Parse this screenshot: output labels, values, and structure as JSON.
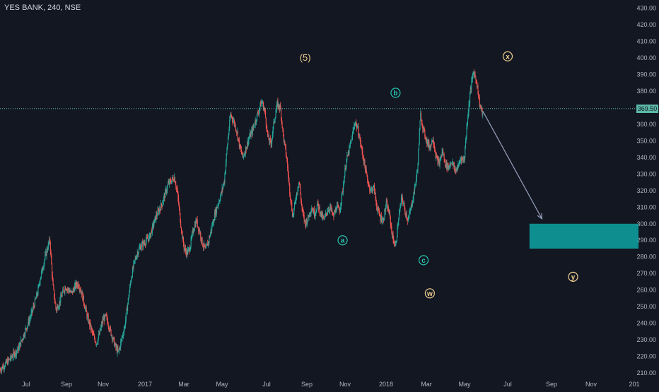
{
  "header": {
    "symbol_line": "YES BANK, 240, NSE"
  },
  "colors": {
    "background": "#131722",
    "up": "#26a69a",
    "down": "#ef5350",
    "axis_text": "#b2b5be",
    "target_box": "#0fa3a3",
    "hline": "#5cb8a8",
    "projection": "#8f9bb3"
  },
  "chart_data": {
    "type": "candlestick",
    "ylim": [
      207,
      435
    ],
    "y_ticks": [
      "210.00",
      "220.00",
      "230.00",
      "240.00",
      "250.00",
      "260.00",
      "270.00",
      "280.00",
      "290.00",
      "300.00",
      "310.00",
      "320.00",
      "330.00",
      "340.00",
      "350.00",
      "360.00",
      "370.00",
      "380.00",
      "390.00",
      "400.00",
      "410.00",
      "420.00",
      "430.00"
    ],
    "x_ticks": [
      "Jul",
      "Sep",
      "Nov",
      "2017",
      "Mar",
      "May",
      "Jul",
      "Sep",
      "Nov",
      "2018",
      "Mar",
      "May",
      "Jul",
      "Sep",
      "Nov",
      "201"
    ],
    "horizontal_line": {
      "value": 369.5,
      "label": "369.50"
    },
    "price_path": [
      [
        0,
        212
      ],
      [
        3,
        218
      ],
      [
        6,
        225
      ],
      [
        8,
        235
      ],
      [
        10,
        245
      ],
      [
        12,
        258
      ],
      [
        13,
        268
      ],
      [
        14,
        276
      ],
      [
        15,
        284
      ],
      [
        16,
        290
      ],
      [
        17,
        262
      ],
      [
        18,
        248
      ],
      [
        19,
        252
      ],
      [
        20,
        258
      ],
      [
        21,
        262
      ],
      [
        22,
        260
      ],
      [
        23,
        258
      ],
      [
        24,
        262
      ],
      [
        25,
        264
      ],
      [
        26,
        260
      ],
      [
        27,
        252
      ],
      [
        28,
        244
      ],
      [
        29,
        238
      ],
      [
        30,
        232
      ],
      [
        31,
        228
      ],
      [
        32,
        234
      ],
      [
        33,
        242
      ],
      [
        34,
        244
      ],
      [
        35,
        238
      ],
      [
        36,
        232
      ],
      [
        37,
        226
      ],
      [
        38,
        222
      ],
      [
        39,
        230
      ],
      [
        40,
        238
      ],
      [
        41,
        252
      ],
      [
        42,
        266
      ],
      [
        43,
        276
      ],
      [
        44,
        282
      ],
      [
        45,
        286
      ],
      [
        46,
        288
      ],
      [
        47,
        290
      ],
      [
        48,
        292
      ],
      [
        49,
        298
      ],
      [
        50,
        304
      ],
      [
        51,
        308
      ],
      [
        52,
        312
      ],
      [
        53,
        318
      ],
      [
        54,
        324
      ],
      [
        55,
        326
      ],
      [
        56,
        328
      ],
      [
        57,
        318
      ],
      [
        58,
        300
      ],
      [
        59,
        286
      ],
      [
        60,
        282
      ],
      [
        61,
        286
      ],
      [
        62,
        296
      ],
      [
        63,
        302
      ],
      [
        64,
        296
      ],
      [
        65,
        288
      ],
      [
        66,
        284
      ],
      [
        67,
        290
      ],
      [
        68,
        298
      ],
      [
        69,
        306
      ],
      [
        70,
        312
      ],
      [
        71,
        318
      ],
      [
        72,
        326
      ],
      [
        73,
        348
      ],
      [
        74,
        366
      ],
      [
        75,
        362
      ],
      [
        76,
        356
      ],
      [
        77,
        346
      ],
      [
        78,
        340
      ],
      [
        79,
        346
      ],
      [
        80,
        352
      ],
      [
        81,
        356
      ],
      [
        82,
        362
      ],
      [
        83,
        368
      ],
      [
        84,
        374
      ],
      [
        85,
        368
      ],
      [
        86,
        352
      ],
      [
        87,
        348
      ],
      [
        88,
        362
      ],
      [
        89,
        372
      ],
      [
        90,
        370
      ],
      [
        91,
        352
      ],
      [
        92,
        340
      ],
      [
        93,
        320
      ],
      [
        94,
        304
      ],
      [
        95,
        316
      ],
      [
        96,
        326
      ],
      [
        97,
        308
      ],
      [
        98,
        300
      ],
      [
        99,
        304
      ],
      [
        100,
        310
      ],
      [
        101,
        306
      ],
      [
        102,
        312
      ],
      [
        103,
        306
      ],
      [
        104,
        302
      ],
      [
        105,
        308
      ],
      [
        106,
        310
      ],
      [
        107,
        304
      ],
      [
        108,
        310
      ],
      [
        109,
        308
      ],
      [
        110,
        320
      ],
      [
        111,
        336
      ],
      [
        112,
        344
      ],
      [
        113,
        352
      ],
      [
        114,
        362
      ],
      [
        115,
        356
      ],
      [
        116,
        346
      ],
      [
        117,
        336
      ],
      [
        118,
        326
      ],
      [
        119,
        320
      ],
      [
        120,
        322
      ],
      [
        121,
        310
      ],
      [
        122,
        304
      ],
      [
        123,
        302
      ],
      [
        124,
        312
      ],
      [
        125,
        306
      ],
      [
        126,
        292
      ],
      [
        127,
        286
      ],
      [
        128,
        304
      ],
      [
        129,
        316
      ],
      [
        130,
        308
      ],
      [
        131,
        302
      ],
      [
        132,
        310
      ],
      [
        133,
        320
      ],
      [
        134,
        332
      ],
      [
        135,
        366
      ],
      [
        136,
        356
      ],
      [
        137,
        350
      ],
      [
        138,
        346
      ],
      [
        139,
        352
      ],
      [
        140,
        340
      ],
      [
        141,
        336
      ],
      [
        142,
        344
      ],
      [
        143,
        336
      ],
      [
        144,
        334
      ],
      [
        145,
        338
      ],
      [
        146,
        332
      ],
      [
        147,
        334
      ],
      [
        148,
        340
      ],
      [
        149,
        338
      ],
      [
        150,
        362
      ],
      [
        151,
        380
      ],
      [
        152,
        392
      ],
      [
        153,
        386
      ],
      [
        154,
        372
      ],
      [
        155,
        366
      ]
    ],
    "projection": {
      "from": [
        155,
        368
      ],
      "to": [
        174,
        303
      ]
    },
    "target_zone": {
      "x_from": 170,
      "x_to": 205,
      "y_from": 285,
      "y_to": 300
    },
    "wave_labels": [
      {
        "text": "(5)",
        "x": 98,
        "y": 400,
        "circled": false,
        "color": "#f0d090"
      },
      {
        "text": "a",
        "x": 110,
        "y": 290,
        "circled": true,
        "color": "#26c6b0"
      },
      {
        "text": "b",
        "x": 127,
        "y": 379,
        "circled": true,
        "color": "#26c6b0"
      },
      {
        "text": "c",
        "x": 136,
        "y": 278,
        "circled": true,
        "color": "#26c6b0"
      },
      {
        "text": "w",
        "x": 138,
        "y": 258,
        "circled": true,
        "color": "#f0d090"
      },
      {
        "text": "x",
        "x": 163,
        "y": 401,
        "circled": true,
        "color": "#f0d090"
      },
      {
        "text": "y",
        "x": 184,
        "y": 268,
        "circled": true,
        "color": "#f0d090"
      }
    ]
  }
}
